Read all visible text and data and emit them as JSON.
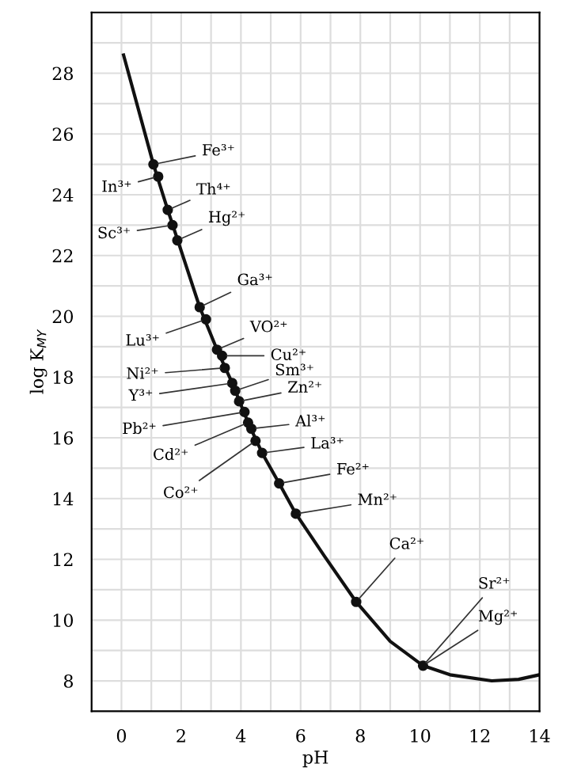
{
  "chart_data": {
    "type": "scatter",
    "xlabel": "pH",
    "ylabel": "log K$_{MY}$",
    "x": [
      1.07,
      1.23,
      1.55,
      1.71,
      1.87,
      2.62,
      2.83,
      3.2,
      3.37,
      3.46,
      3.71,
      3.81,
      3.94,
      4.12,
      4.24,
      4.35,
      4.49,
      4.71,
      5.28,
      5.84,
      7.86,
      10.1
    ],
    "series": [
      {
        "type": "line",
        "marker": "none",
        "color": "#111111",
        "x": [
          0.07,
          1.07,
          1.55,
          2.62,
          3.2,
          3.71,
          4.24,
          4.71,
          5.28,
          5.84,
          6.8,
          7.86,
          9.0,
          10.1,
          11.0,
          12.4,
          13.3,
          14.0
        ],
        "values": [
          28.6,
          25.0,
          23.5,
          20.3,
          18.9,
          17.8,
          16.5,
          15.5,
          14.5,
          13.5,
          12.1,
          10.6,
          9.3,
          8.5,
          8.2,
          8.0,
          8.05,
          8.2
        ]
      },
      {
        "color": "#111111",
        "values": [
          25.0,
          24.6,
          23.5,
          23.0,
          22.5,
          20.3,
          19.9,
          18.9,
          18.7,
          18.3,
          17.8,
          17.55,
          17.2,
          16.85,
          16.5,
          16.3,
          15.9,
          15.5,
          14.5,
          13.5,
          10.6,
          8.5
        ]
      }
    ],
    "annotations": [
      {
        "text": "Fe³⁺",
        "x": 1.07,
        "y": 25.0
      },
      {
        "text": "In³⁺",
        "x": 1.23,
        "y": 24.6
      },
      {
        "text": "Th⁴⁺",
        "x": 1.55,
        "y": 23.5
      },
      {
        "text": "Sc³⁺",
        "x": 1.71,
        "y": 23.0
      },
      {
        "text": "Hg²⁺",
        "x": 1.87,
        "y": 22.5
      },
      {
        "text": "Ga³⁺",
        "x": 2.62,
        "y": 20.3
      },
      {
        "text": "Lu³⁺",
        "x": 2.83,
        "y": 19.9
      },
      {
        "text": "VO²⁺",
        "x": 3.2,
        "y": 18.9
      },
      {
        "text": "Cu²⁺",
        "x": 3.37,
        "y": 18.7
      },
      {
        "text": "Ni²⁺",
        "x": 3.46,
        "y": 18.3
      },
      {
        "text": "Y³⁺",
        "x": 3.71,
        "y": 17.8
      },
      {
        "text": "Sm³⁺",
        "x": 3.81,
        "y": 17.55
      },
      {
        "text": "Zn²⁺",
        "x": 3.94,
        "y": 17.2
      },
      {
        "text": "Pb²⁺",
        "x": 4.12,
        "y": 16.85
      },
      {
        "text": "Cd²⁺",
        "x": 4.24,
        "y": 16.5
      },
      {
        "text": "Al³⁺",
        "x": 4.35,
        "y": 16.3
      },
      {
        "text": "Co²⁺",
        "x": 4.49,
        "y": 15.9
      },
      {
        "text": "La³⁺",
        "x": 4.71,
        "y": 15.5
      },
      {
        "text": "Fe²⁺",
        "x": 5.28,
        "y": 14.5
      },
      {
        "text": "Mn²⁺",
        "x": 5.84,
        "y": 13.5
      },
      {
        "text": "Ca²⁺",
        "x": 7.86,
        "y": 10.6
      },
      {
        "text": "Sr²⁺",
        "x": 10.1,
        "y": 8.5
      },
      {
        "text": "Mg²⁺",
        "x": 10.1,
        "y": 8.5
      }
    ],
    "xlim": [
      -1,
      14
    ],
    "ylim": [
      7,
      30
    ],
    "xticks": [
      0,
      {
        "value": 1,
        "label": null
      },
      2,
      {
        "value": 3,
        "label": null
      },
      4,
      {
        "value": 5,
        "label": null
      },
      6,
      {
        "value": 7,
        "label": null
      },
      8,
      {
        "value": 9,
        "label": null
      },
      10,
      {
        "value": 11,
        "label": null
      },
      12,
      {
        "value": 13,
        "label": null
      },
      14
    ],
    "yticks": [
      8,
      {
        "value": 9,
        "label": null
      },
      10,
      {
        "value": 11,
        "label": null
      },
      12,
      {
        "value": 13,
        "label": null
      },
      14,
      {
        "value": 15,
        "label": null
      },
      16,
      {
        "value": 17,
        "label": null
      },
      18,
      {
        "value": 19,
        "label": null
      },
      20,
      {
        "value": 21,
        "label": null
      },
      22,
      {
        "value": 23,
        "label": null
      },
      24,
      {
        "value": 25,
        "label": null
      },
      26,
      {
        "value": 27,
        "label": null
      },
      28,
      {
        "value": 29,
        "label": null
      }
    ],
    "grid": true,
    "marker": "circle",
    "line_style": "solid"
  }
}
